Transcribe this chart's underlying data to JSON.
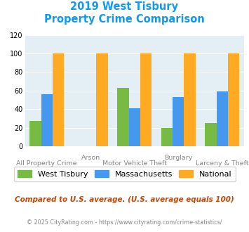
{
  "title_line1": "2019 West Tisbury",
  "title_line2": "Property Crime Comparison",
  "categories": [
    "All Property Crime",
    "Arson",
    "Motor Vehicle Theft",
    "Burglary",
    "Larceny & Theft"
  ],
  "west_tisbury": [
    27,
    0,
    63,
    20,
    25
  ],
  "massachusetts": [
    56,
    0,
    41,
    53,
    59
  ],
  "national": [
    100,
    100,
    100,
    100,
    100
  ],
  "bar_colors": {
    "west_tisbury": "#77bb44",
    "massachusetts": "#4499ee",
    "national": "#ffaa22"
  },
  "ylim": [
    0,
    120
  ],
  "yticks": [
    0,
    20,
    40,
    60,
    80,
    100,
    120
  ],
  "legend_labels": [
    "West Tisbury",
    "Massachusetts",
    "National"
  ],
  "footnote1": "Compared to U.S. average. (U.S. average equals 100)",
  "footnote2": "© 2025 CityRating.com - https://www.cityrating.com/crime-statistics/",
  "title_color": "#1199ee",
  "footnote1_color": "#cc4400",
  "footnote2_color": "#888888",
  "bg_color": "#ffffff",
  "plot_bg": "#e4eef5",
  "grid_color": "#ffffff"
}
